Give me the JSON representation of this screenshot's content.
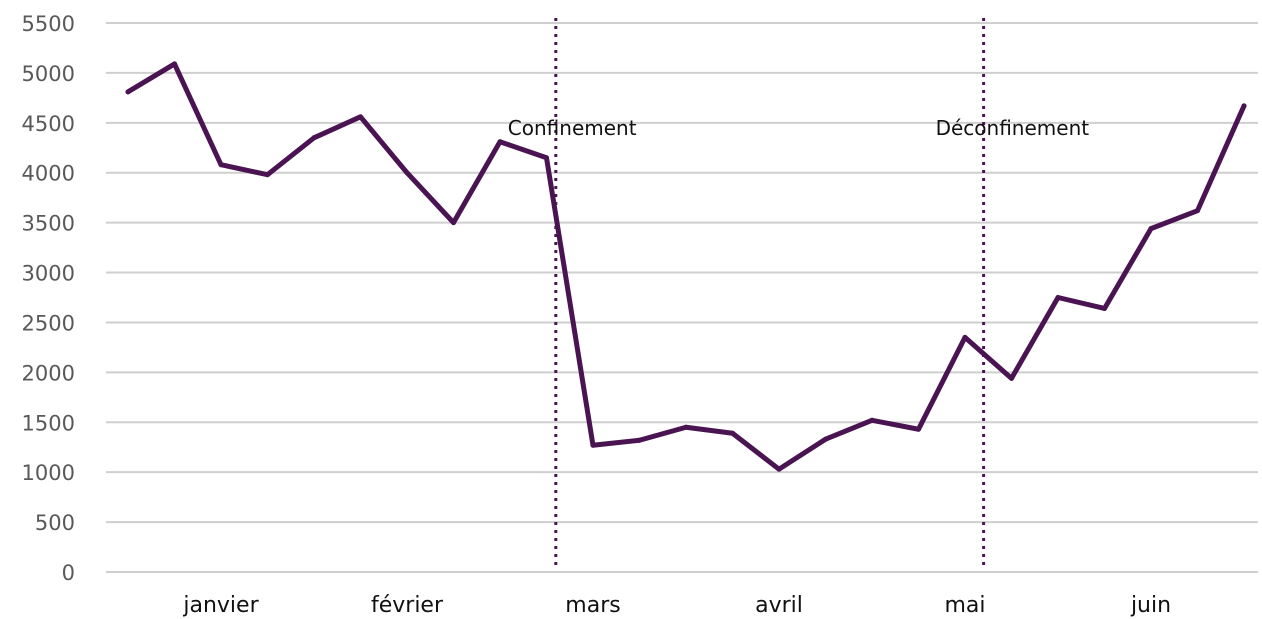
{
  "chart_data": {
    "type": "line",
    "title": "",
    "xlabel": "",
    "ylabel": "",
    "ylim": [
      0,
      5500
    ],
    "yticks": [
      0,
      500,
      1000,
      1500,
      2000,
      2500,
      3000,
      3500,
      4000,
      4500,
      5000,
      5500
    ],
    "grid": true,
    "legend": "none",
    "months": [
      "janvier",
      "février",
      "mars",
      "avril",
      "mai",
      "juin"
    ],
    "series": [
      {
        "color": "#4a1452",
        "values": [
          4810,
          5090,
          4080,
          3980,
          4350,
          4560,
          4000,
          3500,
          4310,
          4150,
          1270,
          1320,
          1450,
          1390,
          1030,
          1330,
          1520,
          1430,
          2350,
          1940,
          2750,
          2640,
          3440,
          3620,
          4670
        ]
      }
    ],
    "events": [
      {
        "label": "Confinement",
        "after_index": 9.2
      },
      {
        "label": "Déconfinement",
        "after_index": 18.4
      }
    ],
    "colors": {
      "line": "#4a1452",
      "event_line": "#4a1452",
      "grid": "#cfcfcf"
    }
  }
}
